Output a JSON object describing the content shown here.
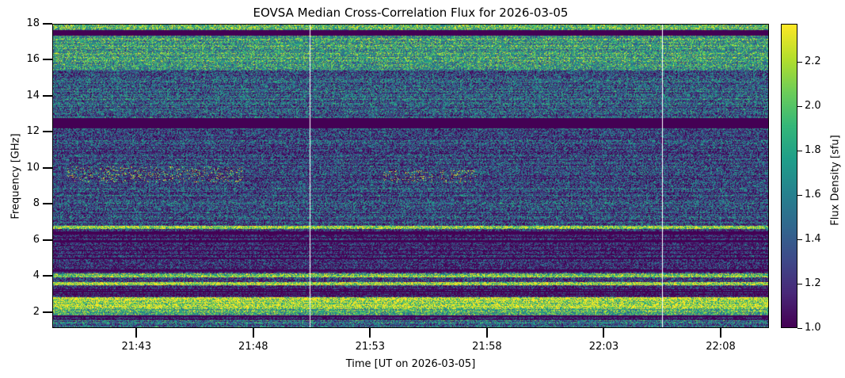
{
  "chart_data": {
    "type": "heatmap",
    "title": "EOVSA Median Cross-Correlation Flux for 2026-03-05",
    "xlabel": "Time [UT on 2026-03-05]",
    "ylabel": "Frequency [GHz]",
    "colorbar_label": "Flux Density [sfu]",
    "colormap": "viridis",
    "xlim": [
      "21:39:24",
      "22:10:04"
    ],
    "ylim": [
      1.1,
      18.0
    ],
    "xticks": [
      "21:43",
      "21:48",
      "21:53",
      "21:58",
      "22:03",
      "22:08"
    ],
    "yticks": [
      2,
      4,
      6,
      8,
      10,
      12,
      14,
      16,
      18
    ],
    "clim": [
      1.0,
      2.37
    ],
    "cticks": [
      "1.0",
      "1.2",
      "1.4",
      "1.6",
      "1.8",
      "2.0",
      "2.2"
    ],
    "data_gaps_UT": [
      "21:50:25",
      "22:05:30"
    ],
    "frequency_profile_sfu": [
      {
        "ghz": [
          1.1,
          1.5
        ],
        "level": 1.5
      },
      {
        "ghz": [
          1.5,
          1.75
        ],
        "level": 1.1
      },
      {
        "ghz": [
          1.75,
          2.1
        ],
        "level": 1.9
      },
      {
        "ghz": [
          2.1,
          2.8
        ],
        "level": 2.3
      },
      {
        "ghz": [
          2.8,
          3.4
        ],
        "level": 1.05
      },
      {
        "ghz": [
          3.45,
          3.6
        ],
        "level": 2.3
      },
      {
        "ghz": [
          3.6,
          3.85
        ],
        "level": 1.1
      },
      {
        "ghz": [
          3.9,
          4.1
        ],
        "level": 2.1
      },
      {
        "ghz": [
          4.1,
          6.6
        ],
        "level": 1.1
      },
      {
        "ghz": [
          6.6,
          6.75
        ],
        "level": 2.2
      },
      {
        "ghz": [
          6.75,
          12.2
        ],
        "level": 1.3
      },
      {
        "ghz": [
          12.2,
          12.8
        ],
        "level": 1.0
      },
      {
        "ghz": [
          12.8,
          15.5
        ],
        "level": 1.4
      },
      {
        "ghz": [
          15.5,
          17.4
        ],
        "level": 1.75
      },
      {
        "ghz": [
          17.4,
          17.7
        ],
        "level": 1.0
      },
      {
        "ghz": [
          17.7,
          18.0
        ],
        "level": 1.9
      }
    ],
    "bursts": [
      {
        "ghz": [
          9.2,
          10.1
        ],
        "time": [
          "21:40:00",
          "21:47:30"
        ]
      },
      {
        "ghz": [
          9.2,
          9.9
        ],
        "time": [
          "21:53:30",
          "21:57:30"
        ]
      }
    ]
  }
}
